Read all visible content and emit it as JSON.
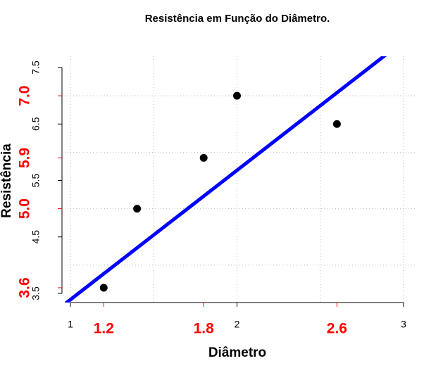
{
  "chart_data": {
    "type": "scatter",
    "title": "Resistência em Função do Diâmetro.",
    "xlabel": "Diâmetro",
    "ylabel": "Resistência",
    "x": [
      1.2,
      1.4,
      1.8,
      2.0,
      2.6
    ],
    "values": [
      3.6,
      5.0,
      5.9,
      7.0,
      6.5
    ],
    "color": "#000000",
    "xlim": [
      1,
      3
    ],
    "ylim": [
      3.5,
      7.5
    ],
    "xticks": [
      1,
      2,
      3
    ],
    "yticks": [
      3.5,
      4.5,
      5.5,
      6.5,
      7.5
    ],
    "xticks_red": [
      1.2,
      1.8,
      2.6
    ],
    "yticks_red": [
      3.6,
      {
        "value": 5,
        "label": "5.0"
      },
      5.9,
      {
        "value": 7,
        "label": "7.0"
      }
    ],
    "red_color": "#ff0000",
    "grid": true,
    "xgrid": [
      1,
      1.5,
      2,
      2.5,
      3
    ],
    "ygrid": [
      4,
      5,
      6,
      7
    ],
    "fit_line": {
      "slope": 2.29,
      "intercept": 1.1,
      "color": "#0000ff"
    }
  }
}
